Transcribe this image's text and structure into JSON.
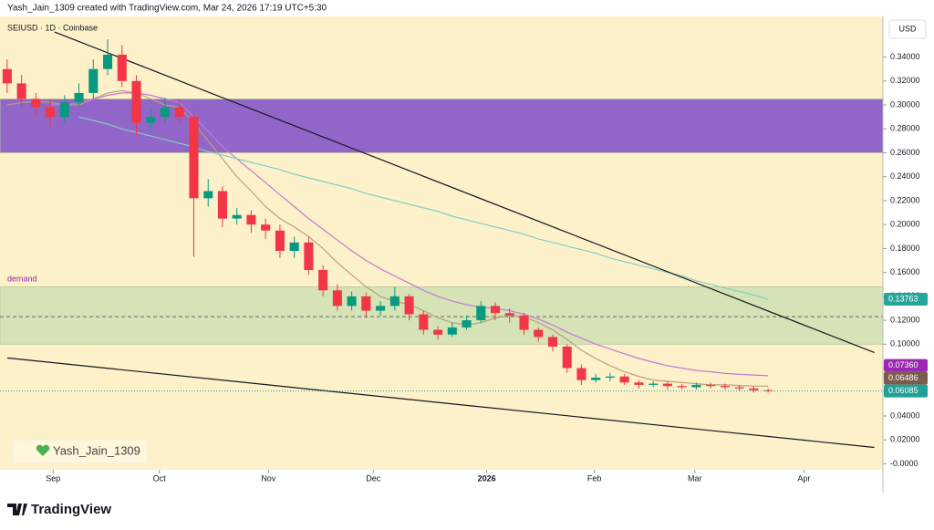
{
  "header": "Yash_Jain_1309 created with TradingView.com, Mar 24, 2026 17:19 UTC+5:30",
  "brand": "TradingView",
  "watermark": "Yash_Jain_1309",
  "chart_data": {
    "type": "candlestick",
    "symbol": "SEIUSD · 1D · Coinbase",
    "currency": "USD",
    "up_color": "#089981",
    "down_color": "#f23645",
    "background": "#fdf1c9",
    "xlim": [
      -0.5,
      61
    ],
    "xticks": [
      {
        "value": 3.2,
        "label": "Sep"
      },
      {
        "value": 10.6,
        "label": "Oct"
      },
      {
        "value": 18.2,
        "label": "Nov"
      },
      {
        "value": 25.5,
        "label": "Dec"
      },
      {
        "value": 33.4,
        "label": "2026"
      },
      {
        "value": 40.9,
        "label": "Feb"
      },
      {
        "value": 47.9,
        "label": "Mar"
      },
      {
        "value": 55.5,
        "label": "Apr"
      }
    ],
    "ylim": [
      -0.005,
      0.374
    ],
    "yticks": [
      {
        "value": 0.34,
        "label": "0.34000"
      },
      {
        "value": 0.32,
        "label": "0.32000"
      },
      {
        "value": 0.3,
        "label": "0.30000"
      },
      {
        "value": 0.28,
        "label": "0.28000"
      },
      {
        "value": 0.26,
        "label": "0.26000"
      },
      {
        "value": 0.24,
        "label": "0.24000"
      },
      {
        "value": 0.22,
        "label": "0.22000"
      },
      {
        "value": 0.2,
        "label": "0.20000"
      },
      {
        "value": 0.18,
        "label": "0.18000"
      },
      {
        "value": 0.16,
        "label": "0.16000"
      },
      {
        "value": 0.14,
        "label": "0.14000"
      },
      {
        "value": 0.12,
        "label": "0.12000"
      },
      {
        "value": 0.1,
        "label": "0.10000"
      },
      {
        "value": 0.08,
        "label": "0.08000"
      },
      {
        "value": 0.06,
        "label": "0.06000"
      },
      {
        "value": 0.04,
        "label": "0.04000"
      },
      {
        "value": 0.02,
        "label": "0.02000"
      },
      {
        "value": 0,
        "label": "-0.0000"
      }
    ],
    "open": [
      0.33,
      0.318,
      0.305,
      0.298,
      0.29,
      0.302,
      0.31,
      0.33,
      0.342,
      0.32,
      0.285,
      0.29,
      0.298,
      0.29,
      0.222,
      0.228,
      0.205,
      0.208,
      0.2,
      0.195,
      0.178,
      0.185,
      0.162,
      0.145,
      0.132,
      0.14,
      0.128,
      0.132,
      0.14,
      0.125,
      0.112,
      0.108,
      0.114,
      0.12,
      0.132,
      0.126,
      0.124,
      0.112,
      0.106,
      0.098,
      0.08,
      0.07,
      0.072,
      0.073,
      0.068,
      0.066,
      0.067,
      0.065,
      0.064,
      0.066,
      0.065,
      0.064,
      0.063,
      0.0615
    ],
    "high": [
      0.338,
      0.325,
      0.31,
      0.305,
      0.308,
      0.318,
      0.338,
      0.355,
      0.35,
      0.325,
      0.298,
      0.306,
      0.305,
      0.295,
      0.238,
      0.232,
      0.214,
      0.212,
      0.205,
      0.2,
      0.19,
      0.19,
      0.166,
      0.15,
      0.144,
      0.143,
      0.136,
      0.148,
      0.142,
      0.128,
      0.115,
      0.118,
      0.124,
      0.136,
      0.135,
      0.13,
      0.126,
      0.114,
      0.108,
      0.1,
      0.083,
      0.075,
      0.076,
      0.075,
      0.07,
      0.069,
      0.069,
      0.067,
      0.068,
      0.068,
      0.067,
      0.066,
      0.065,
      0.063
    ],
    "low": [
      0.31,
      0.298,
      0.29,
      0.282,
      0.285,
      0.298,
      0.305,
      0.325,
      0.315,
      0.275,
      0.278,
      0.285,
      0.285,
      0.173,
      0.215,
      0.198,
      0.2,
      0.193,
      0.188,
      0.172,
      0.172,
      0.158,
      0.14,
      0.128,
      0.128,
      0.122,
      0.124,
      0.128,
      0.12,
      0.108,
      0.104,
      0.106,
      0.112,
      0.118,
      0.12,
      0.118,
      0.108,
      0.102,
      0.094,
      0.076,
      0.066,
      0.068,
      0.069,
      0.066,
      0.063,
      0.064,
      0.062,
      0.062,
      0.062,
      0.063,
      0.062,
      0.061,
      0.0595,
      0.0595
    ],
    "close": [
      0.318,
      0.305,
      0.298,
      0.29,
      0.302,
      0.31,
      0.33,
      0.342,
      0.32,
      0.285,
      0.29,
      0.298,
      0.29,
      0.222,
      0.228,
      0.205,
      0.208,
      0.2,
      0.195,
      0.178,
      0.185,
      0.162,
      0.145,
      0.132,
      0.14,
      0.128,
      0.132,
      0.14,
      0.125,
      0.112,
      0.108,
      0.114,
      0.12,
      0.132,
      0.126,
      0.124,
      0.112,
      0.106,
      0.098,
      0.08,
      0.07,
      0.072,
      0.073,
      0.068,
      0.066,
      0.067,
      0.065,
      0.064,
      0.066,
      0.065,
      0.064,
      0.063,
      0.0615,
      0.06085
    ],
    "close_label": "0.06085",
    "close_label_color": "#22a095",
    "series": [
      {
        "color": "#b8a07a",
        "values": [
          0.3,
          0.302,
          0.303,
          0.302,
          0.3,
          0.3,
          0.305,
          0.31,
          0.312,
          0.31,
          0.305,
          0.3,
          0.298,
          0.285,
          0.27,
          0.255,
          0.24,
          0.228,
          0.215,
          0.205,
          0.198,
          0.19,
          0.18,
          0.168,
          0.158,
          0.148,
          0.14,
          0.136,
          0.133,
          0.128,
          0.122,
          0.118,
          0.116,
          0.118,
          0.122,
          0.124,
          0.123,
          0.118,
          0.112,
          0.104,
          0.095,
          0.088,
          0.082,
          0.077,
          0.073,
          0.07,
          0.069,
          0.068,
          0.067,
          0.066,
          0.066,
          0.0655,
          0.065,
          0.06486
        ],
        "last_label": "0.06486",
        "label_color": "#7a5c4c"
      },
      {
        "color": "#c27ad6",
        "values": [
          null,
          null,
          null,
          0.3,
          0.3,
          0.302,
          0.305,
          0.308,
          0.31,
          0.31,
          0.308,
          0.305,
          0.302,
          0.29,
          0.278,
          0.265,
          0.255,
          0.245,
          0.235,
          0.225,
          0.215,
          0.205,
          0.196,
          0.187,
          0.178,
          0.17,
          0.163,
          0.157,
          0.151,
          0.145,
          0.14,
          0.136,
          0.133,
          0.131,
          0.13,
          0.128,
          0.125,
          0.121,
          0.116,
          0.11,
          0.105,
          0.1,
          0.096,
          0.092,
          0.088,
          0.085,
          0.082,
          0.08,
          0.078,
          0.077,
          0.0755,
          0.0748,
          0.0742,
          0.0736
        ],
        "last_label": "0.07360",
        "label_color": "#9c27b0"
      },
      {
        "color": "#7fcfc4",
        "values": [
          null,
          null,
          null,
          null,
          null,
          0.29,
          0.287,
          0.284,
          0.28,
          0.277,
          0.274,
          0.271,
          0.268,
          0.265,
          0.261,
          0.258,
          0.255,
          0.252,
          0.249,
          0.246,
          0.242,
          0.239,
          0.236,
          0.233,
          0.23,
          0.226,
          0.223,
          0.22,
          0.217,
          0.214,
          0.211,
          0.207,
          0.204,
          0.201,
          0.198,
          0.195,
          0.192,
          0.188,
          0.185,
          0.182,
          0.179,
          0.176,
          0.172,
          0.169,
          0.166,
          0.163,
          0.16,
          0.157,
          0.153,
          0.15,
          0.147,
          0.144,
          0.141,
          0.13763
        ],
        "last_label": "0.13763",
        "label_color": "#26a69a"
      }
    ],
    "zones": [
      {
        "from": 0.26,
        "to": 0.305,
        "color": "#9166c8"
      },
      {
        "from": 0.1,
        "to": 0.148,
        "color": "#d5e3b6",
        "label": "demand"
      }
    ],
    "hlines": [
      {
        "value": 0.123,
        "color": "#666666"
      }
    ],
    "trendlines": [
      {
        "x": [
          3.3,
          60.4
        ],
        "y": [
          0.361,
          0.093
        ]
      },
      {
        "x": [
          0,
          60.4
        ],
        "y": [
          0.0885,
          0.0137
        ]
      }
    ]
  }
}
